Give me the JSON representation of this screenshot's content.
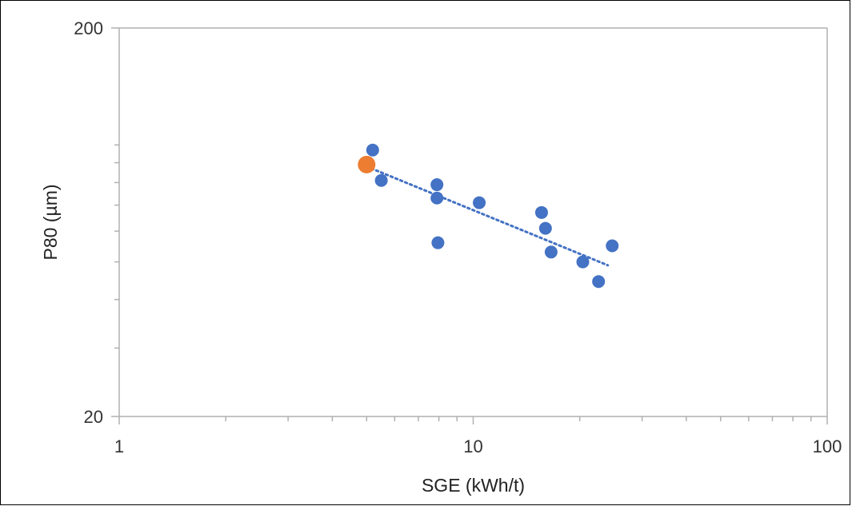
{
  "chart_data": {
    "type": "scatter",
    "title": "",
    "xlabel": "SGE (kWh/t)",
    "ylabel": "P80 (µm)",
    "x_scale": "log",
    "y_scale": "log",
    "xlim": [
      1,
      100
    ],
    "ylim": [
      20,
      200
    ],
    "x_ticks": [
      {
        "value": 1,
        "label": "1"
      },
      {
        "value": 10,
        "label": "10"
      },
      {
        "value": 100,
        "label": "100"
      }
    ],
    "y_ticks": [
      {
        "value": 20,
        "label": "20"
      },
      {
        "value": 200,
        "label": "200"
      }
    ],
    "grid": false,
    "legend": "none",
    "series": [
      {
        "color": "#4472C4",
        "points": [
          {
            "x": 5.2,
            "y": 97
          },
          {
            "x": 5.5,
            "y": 81
          },
          {
            "x": 7.9,
            "y": 79
          },
          {
            "x": 7.9,
            "y": 73
          },
          {
            "x": 7.95,
            "y": 56
          },
          {
            "x": 10.4,
            "y": 71
          },
          {
            "x": 15.6,
            "y": 67
          },
          {
            "x": 16.0,
            "y": 61
          },
          {
            "x": 16.6,
            "y": 53
          },
          {
            "x": 20.4,
            "y": 50
          },
          {
            "x": 22.6,
            "y": 44.5
          },
          {
            "x": 24.7,
            "y": 55
          }
        ]
      },
      {
        "color": "#ED7D31",
        "marker": "large",
        "points": [
          {
            "x": 5.0,
            "y": 89
          }
        ]
      }
    ],
    "trendline": {
      "style": "dotted",
      "color": "#4472C4",
      "points": [
        {
          "x": 5.0,
          "y": 88
        },
        {
          "x": 24.0,
          "y": 49
        }
      ]
    }
  }
}
